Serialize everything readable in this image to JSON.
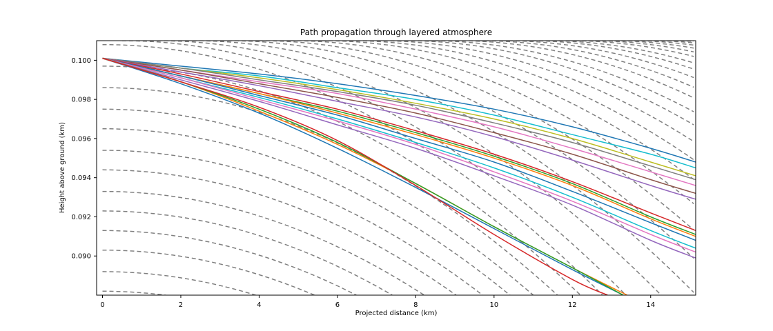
{
  "chart_data": {
    "type": "line",
    "title": "Path propagation through layered atmosphere",
    "xlabel": "Projected distance (km)",
    "ylabel": "Height above ground (km)",
    "xlim": [
      -0.15,
      15.15
    ],
    "ylim": [
      0.088,
      0.101
    ],
    "xticks": [
      0,
      2,
      4,
      6,
      8,
      10,
      12,
      14
    ],
    "yticks": [
      0.09,
      0.092,
      0.094,
      0.096,
      0.098,
      0.1
    ],
    "ytick_format": 3,
    "grid": false,
    "legend": "none",
    "background_series": {
      "description_color": "#808080",
      "style": "dashed",
      "layers": [
        {
          "h0": 0.1008,
          "x0": 0
        },
        {
          "h0": 0.0997,
          "x0": 0
        },
        {
          "h0": 0.0986,
          "x0": 0
        },
        {
          "h0": 0.0975,
          "x0": 0
        },
        {
          "h0": 0.0965,
          "x0": 0
        },
        {
          "h0": 0.0954,
          "x0": 0
        },
        {
          "h0": 0.0944,
          "x0": 0
        },
        {
          "h0": 0.0933,
          "x0": 0
        },
        {
          "h0": 0.0923,
          "x0": 0
        },
        {
          "h0": 0.0913,
          "x0": 0
        },
        {
          "h0": 0.0903,
          "x0": 0
        },
        {
          "h0": 0.0892,
          "x0": 0
        },
        {
          "h0": 0.0882,
          "x0": 0
        },
        {
          "h0": 0.101,
          "x0": 0.5
        },
        {
          "h0": 0.101,
          "x0": 1.4
        },
        {
          "h0": 0.101,
          "x0": 2.3
        },
        {
          "h0": 0.101,
          "x0": 3.2
        },
        {
          "h0": 0.101,
          "x0": 4.0
        },
        {
          "h0": 0.101,
          "x0": 4.8
        },
        {
          "h0": 0.101,
          "x0": 5.6
        },
        {
          "h0": 0.101,
          "x0": 6.3
        },
        {
          "h0": 0.101,
          "x0": 7.0
        },
        {
          "h0": 0.101,
          "x0": 7.7
        },
        {
          "h0": 0.101,
          "x0": 8.3
        },
        {
          "h0": 0.101,
          "x0": 9.0
        },
        {
          "h0": 0.101,
          "x0": 9.6
        },
        {
          "h0": 0.101,
          "x0": 10.2
        },
        {
          "h0": 0.101,
          "x0": 10.8
        },
        {
          "h0": 0.101,
          "x0": 11.3
        },
        {
          "h0": 0.101,
          "x0": 11.9
        },
        {
          "h0": 0.101,
          "x0": 12.4
        },
        {
          "h0": 0.101,
          "x0": 12.9
        },
        {
          "h0": 0.101,
          "x0": 13.4
        },
        {
          "h0": 0.101,
          "x0": 13.9
        },
        {
          "h0": 0.101,
          "x0": 14.4
        },
        {
          "h0": 0.101,
          "x0": 14.9
        }
      ],
      "curvature": 7.85e-05
    },
    "series": [
      {
        "color": "#1f77b4",
        "x": [
          0,
          2,
          4,
          6,
          8,
          10,
          12,
          14,
          15.15
        ],
        "y": [
          0.1001,
          0.0997,
          0.0993,
          0.0988,
          0.0982,
          0.0975,
          0.0966,
          0.0955,
          0.0948
        ]
      },
      {
        "color": "#17becf",
        "x": [
          0,
          2,
          4,
          6,
          8,
          10,
          12,
          14,
          15.15
        ],
        "y": [
          0.1001,
          0.0996,
          0.0992,
          0.0986,
          0.098,
          0.0972,
          0.0962,
          0.0952,
          0.0945
        ]
      },
      {
        "color": "#bcbd22",
        "x": [
          0,
          2,
          4,
          6,
          8,
          10,
          12,
          14,
          15.15
        ],
        "y": [
          0.1001,
          0.0996,
          0.0991,
          0.0985,
          0.0978,
          0.097,
          0.096,
          0.0948,
          0.0941
        ]
      },
      {
        "color": "#7f7f7f",
        "x": [
          0,
          2,
          4,
          6,
          8,
          10,
          12,
          14,
          15.15
        ],
        "y": [
          0.1001,
          0.0996,
          0.099,
          0.0984,
          0.0977,
          0.0968,
          0.0958,
          0.0946,
          0.0939
        ]
      },
      {
        "color": "#e377c2",
        "x": [
          0,
          2,
          4,
          6,
          8,
          10,
          12,
          14,
          15.15
        ],
        "y": [
          0.1001,
          0.0995,
          0.0989,
          0.0983,
          0.0975,
          0.0966,
          0.0955,
          0.0943,
          0.0936
        ]
      },
      {
        "color": "#8c564b",
        "x": [
          0,
          2,
          4,
          6,
          8,
          10,
          12,
          14,
          15.15
        ],
        "y": [
          0.1001,
          0.0995,
          0.0988,
          0.0981,
          0.0973,
          0.0963,
          0.0952,
          0.0939,
          0.0932
        ]
      },
      {
        "color": "#9467bd",
        "x": [
          0,
          2,
          4,
          6,
          8,
          10,
          12,
          14,
          15.15
        ],
        "y": [
          0.1001,
          0.0994,
          0.0987,
          0.0979,
          0.0971,
          0.0961,
          0.0949,
          0.0936,
          0.0929
        ]
      },
      {
        "color": "#d62728",
        "x": [
          0,
          2,
          4,
          6,
          8,
          10,
          12,
          14,
          15.15
        ],
        "y": [
          0.1001,
          0.0993,
          0.0984,
          0.0975,
          0.0964,
          0.0952,
          0.0938,
          0.0922,
          0.0913
        ]
      },
      {
        "color": "#2ca02c",
        "x": [
          0,
          2,
          4,
          6,
          8,
          10,
          12,
          14,
          15.15
        ],
        "y": [
          0.1001,
          0.0992,
          0.0983,
          0.0974,
          0.0963,
          0.0951,
          0.0937,
          0.092,
          0.0911
        ]
      },
      {
        "color": "#ff7f0e",
        "x": [
          0,
          2,
          4,
          6,
          8,
          10,
          12,
          14,
          15.15
        ],
        "y": [
          0.1001,
          0.0992,
          0.0983,
          0.0973,
          0.0962,
          0.095,
          0.0936,
          0.0919,
          0.091
        ]
      },
      {
        "color": "#1f77b4",
        "x": [
          0,
          2,
          4,
          6,
          8,
          10,
          12,
          14,
          15.15
        ],
        "y": [
          0.1001,
          0.0992,
          0.0982,
          0.0972,
          0.096,
          0.0948,
          0.0933,
          0.0917,
          0.0908
        ]
      },
      {
        "color": "#17becf",
        "x": [
          0,
          2,
          4,
          6,
          8,
          10,
          12,
          14,
          15.15
        ],
        "y": [
          0.1001,
          0.0991,
          0.0981,
          0.097,
          0.0958,
          0.0945,
          0.093,
          0.0913,
          0.0904
        ]
      },
      {
        "color": "#e377c2",
        "x": [
          0,
          2,
          4,
          6,
          8,
          10,
          12,
          14,
          15.15
        ],
        "y": [
          0.1001,
          0.0991,
          0.098,
          0.0969,
          0.0957,
          0.0943,
          0.0928,
          0.0911,
          0.0902
        ]
      },
      {
        "color": "#9467bd",
        "x": [
          0,
          2,
          4,
          6,
          8,
          10,
          12,
          14,
          15.15
        ],
        "y": [
          0.1001,
          0.099,
          0.0979,
          0.0967,
          0.0955,
          0.0941,
          0.0926,
          0.0908,
          0.0899
        ]
      },
      {
        "color": "#1f77b4",
        "x": [
          0,
          2,
          4,
          6,
          8,
          10,
          12,
          13.3
        ],
        "y": [
          0.1001,
          0.0988,
          0.0973,
          0.0955,
          0.0935,
          0.0914,
          0.0893,
          0.088
        ]
      },
      {
        "color": "#ff7f0e",
        "x": [
          0,
          2,
          4,
          6,
          8,
          10,
          12,
          13.4
        ],
        "y": [
          0.1001,
          0.0989,
          0.0974,
          0.0957,
          0.0937,
          0.0915,
          0.0894,
          0.088
        ]
      },
      {
        "color": "#2ca02c",
        "x": [
          0,
          2,
          4,
          6,
          8,
          10,
          12,
          13.3
        ],
        "y": [
          0.1001,
          0.0989,
          0.0975,
          0.0958,
          0.0937,
          0.0915,
          0.0894,
          0.088
        ]
      },
      {
        "color": "#d62728",
        "x": [
          0,
          2,
          4,
          6,
          8,
          10,
          12,
          12.9
        ],
        "y": [
          0.1001,
          0.0989,
          0.0976,
          0.0959,
          0.0936,
          0.0911,
          0.0888,
          0.088
        ]
      }
    ]
  }
}
